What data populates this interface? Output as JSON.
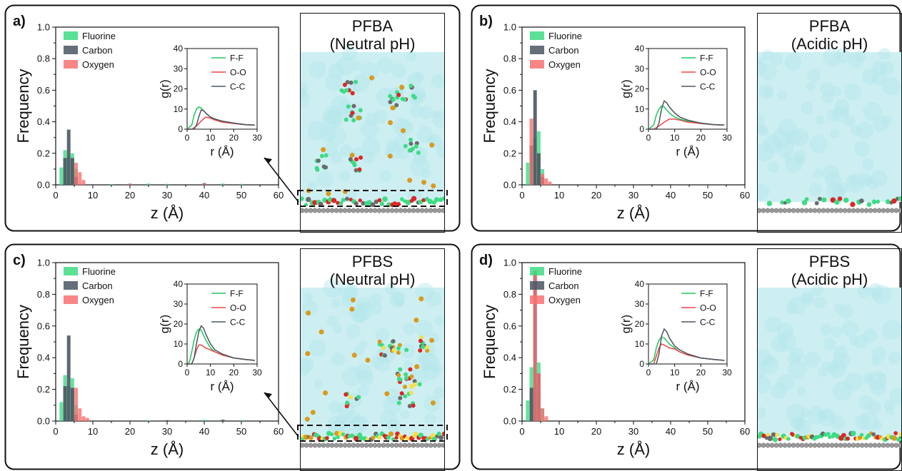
{
  "chart_data": [
    {
      "panel_label": "a)",
      "type": "bar",
      "xlabel": "z (Å)",
      "ylabel": "Frequency",
      "xlim": [
        0,
        60
      ],
      "ylim": [
        0,
        1.0
      ],
      "xticks": [
        "0",
        "10",
        "20",
        "30",
        "40",
        "50",
        "60"
      ],
      "yticks": [
        "0.0",
        "0.2",
        "0.4",
        "0.6",
        "0.8",
        "1.0"
      ],
      "legend_position": "top-left",
      "series": [
        {
          "name": "Fluorine",
          "color": "#3ddc84",
          "x": [
            1.5,
            2.5,
            3.5,
            4.5,
            5.5,
            15,
            20,
            25,
            30,
            40,
            45,
            50
          ],
          "values": [
            0.11,
            0.22,
            0.18,
            0.2,
            0.1,
            0.005,
            0.008,
            0.008,
            0.006,
            0.012,
            0.008,
            0.006
          ]
        },
        {
          "name": "Carbon",
          "color": "#4b5563",
          "x": [
            2.5,
            3.5,
            4.5,
            5.5,
            20,
            40
          ],
          "values": [
            0.17,
            0.35,
            0.17,
            0.05,
            0.006,
            0.01
          ]
        },
        {
          "name": "Oxygen",
          "color": "#f87171",
          "x": [
            5.5,
            6.5,
            7.5,
            20,
            40
          ],
          "values": [
            0.14,
            0.08,
            0.03,
            0.006,
            0.01
          ]
        }
      ],
      "inset": {
        "type": "line",
        "xlabel": "r (Å)",
        "ylabel": "g(r)",
        "xlim": [
          0,
          30
        ],
        "ylim": [
          0,
          40
        ],
        "xticks": [
          "0",
          "10",
          "20",
          "30"
        ],
        "yticks": [
          "0",
          "10",
          "20",
          "30",
          "40"
        ],
        "series": [
          {
            "name": "F-F",
            "color": "#22c55e",
            "x": [
              0,
              2,
              3,
              4,
              5,
              6,
              8,
              10,
              12,
              15,
              20,
              25,
              29
            ],
            "y": [
              0,
              2,
              7,
              10,
              11,
              10.5,
              8,
              6,
              5,
              4,
              3,
              2.3,
              2
            ]
          },
          {
            "name": "O-O",
            "color": "#ef4444",
            "x": [
              0,
              2,
              4,
              6,
              8,
              10,
              12,
              15,
              20,
              25,
              29
            ],
            "y": [
              0,
              0,
              1.5,
              4,
              6,
              5.5,
              4.5,
              3.5,
              2.8,
              2.2,
              2
            ]
          },
          {
            "name": "C-C",
            "color": "#4b5563",
            "x": [
              0,
              3,
              4,
              5,
              6,
              7,
              8,
              10,
              12,
              15,
              20,
              25,
              29
            ],
            "y": [
              0,
              0,
              2,
              6,
              9.5,
              9.2,
              8,
              6,
              5,
              4,
              3,
              2.2,
              2
            ]
          }
        ]
      },
      "snapshot_title": [
        "PFBA",
        "(Neutral pH)"
      ]
    },
    {
      "panel_label": "b)",
      "type": "bar",
      "xlabel": "z (Å)",
      "ylabel": "Frequency",
      "xlim": [
        0,
        60
      ],
      "ylim": [
        0,
        1.0
      ],
      "xticks": [
        "0",
        "10",
        "20",
        "30",
        "40",
        "50",
        "60"
      ],
      "yticks": [
        "0.0",
        "0.2",
        "0.4",
        "0.6",
        "0.8",
        "1.0"
      ],
      "legend_position": "top-left",
      "series": [
        {
          "name": "Fluorine",
          "color": "#3ddc84",
          "x": [
            1.5,
            2.5,
            3.5,
            4.5,
            5.5
          ],
          "values": [
            0.14,
            0.21,
            0.3,
            0.34,
            0.1
          ]
        },
        {
          "name": "Carbon",
          "color": "#4b5563",
          "x": [
            2.5,
            3.5,
            4.5,
            5.5
          ],
          "values": [
            0.25,
            0.6,
            0.2,
            0.05
          ]
        },
        {
          "name": "Oxygen",
          "color": "#f87171",
          "x": [
            2.5,
            5.5,
            6.5,
            7.5
          ],
          "values": [
            0.42,
            0.07,
            0.04,
            0.02
          ]
        }
      ],
      "inset": {
        "type": "line",
        "xlabel": "r (Å)",
        "ylabel": "g(r)",
        "xlim": [
          0,
          30
        ],
        "ylim": [
          0,
          40
        ],
        "xticks": [
          "0",
          "10",
          "20",
          "30"
        ],
        "yticks": [
          "0",
          "10",
          "20",
          "30",
          "40"
        ],
        "series": [
          {
            "name": "F-F",
            "color": "#22c55e",
            "x": [
              0,
              2,
              3,
              4,
              5,
              6,
              8,
              10,
              12,
              15,
              20,
              25,
              29
            ],
            "y": [
              0,
              2,
              7,
              10,
              11.5,
              11,
              8,
              6,
              5,
              4,
              3,
              2.3,
              2
            ]
          },
          {
            "name": "O-O",
            "color": "#ef4444",
            "x": [
              0,
              2,
              4,
              6,
              8,
              10,
              12,
              15,
              20,
              25,
              29
            ],
            "y": [
              0,
              0,
              1.5,
              3.5,
              5,
              5,
              4.5,
              3.5,
              2.8,
              2.2,
              2
            ]
          },
          {
            "name": "C-C",
            "color": "#4b5563",
            "x": [
              0,
              3,
              4,
              5,
              6,
              7,
              8,
              10,
              12,
              15,
              20,
              25,
              29
            ],
            "y": [
              0,
              0,
              3,
              10,
              14,
              13,
              11,
              8,
              6,
              4.5,
              3,
              2.2,
              2
            ]
          }
        ]
      },
      "snapshot_title": [
        "PFBA",
        "(Acidic pH)"
      ]
    },
    {
      "panel_label": "c)",
      "type": "bar",
      "xlabel": "z (Å)",
      "ylabel": "Frequency",
      "xlim": [
        0,
        60
      ],
      "ylim": [
        0,
        1.0
      ],
      "xticks": [
        "0",
        "10",
        "20",
        "30",
        "40",
        "50",
        "60"
      ],
      "yticks": [
        "0.0",
        "0.2",
        "0.4",
        "0.6",
        "0.8",
        "1.0"
      ],
      "legend_position": "top-left",
      "series": [
        {
          "name": "Fluorine",
          "color": "#3ddc84",
          "x": [
            1.5,
            2.5,
            3.5,
            4.5,
            5.5,
            25,
            30,
            40,
            45,
            50
          ],
          "values": [
            0.12,
            0.29,
            0.22,
            0.27,
            0.1,
            0.005,
            0.006,
            0.008,
            0.008,
            0.006
          ]
        },
        {
          "name": "Carbon",
          "color": "#4b5563",
          "x": [
            2.5,
            3.5,
            4.5,
            5.5,
            30,
            45
          ],
          "values": [
            0.22,
            0.54,
            0.21,
            0.04,
            0.005,
            0.008
          ]
        },
        {
          "name": "Oxygen",
          "color": "#f87171",
          "x": [
            5.5,
            6.5,
            7.5,
            8.5
          ],
          "values": [
            0.21,
            0.08,
            0.03,
            0.02
          ]
        }
      ],
      "inset": {
        "type": "line",
        "xlabel": "r (Å)",
        "ylabel": "g(r)",
        "xlim": [
          0,
          30
        ],
        "ylim": [
          0,
          40
        ],
        "xticks": [
          "0",
          "10",
          "20",
          "30"
        ],
        "yticks": [
          "0",
          "10",
          "20",
          "30",
          "40"
        ],
        "series": [
          {
            "name": "F-F",
            "color": "#22c55e",
            "x": [
              0,
              1,
              2,
              3,
              4,
              5,
              6,
              8,
              10,
              12,
              15,
              20,
              25,
              29
            ],
            "y": [
              0,
              1,
              6,
              12,
              16,
              17.5,
              17,
              12,
              8,
              6,
              4.5,
              3,
              2.2,
              1.8
            ]
          },
          {
            "name": "O-O",
            "color": "#ef4444",
            "x": [
              0,
              2,
              3,
              4,
              5,
              6,
              8,
              10,
              12,
              15,
              20,
              25,
              29
            ],
            "y": [
              0,
              0,
              3,
              7,
              9.5,
              9.5,
              8,
              7,
              6,
              4.5,
              3,
              2.3,
              1.8
            ]
          },
          {
            "name": "C-C",
            "color": "#4b5563",
            "x": [
              0,
              2,
              3,
              4,
              5,
              6,
              7,
              8,
              10,
              12,
              15,
              20,
              25,
              29
            ],
            "y": [
              0,
              0,
              3,
              10,
              16,
              19,
              18,
              15,
              10,
              7,
              5,
              3,
              2.2,
              1.8
            ]
          }
        ]
      },
      "snapshot_title": [
        "PFBS",
        "(Neutral pH)"
      ]
    },
    {
      "panel_label": "d)",
      "type": "bar",
      "xlabel": "z (Å)",
      "ylabel": "Frequency",
      "xlim": [
        0,
        60
      ],
      "ylim": [
        0,
        1.0
      ],
      "xticks": [
        "0",
        "10",
        "20",
        "30",
        "40",
        "50",
        "60"
      ],
      "yticks": [
        "0.0",
        "0.2",
        "0.4",
        "0.6",
        "0.8",
        "1.0"
      ],
      "legend_position": "top-left",
      "series": [
        {
          "name": "Fluorine",
          "color": "#3ddc84",
          "x": [
            1.5,
            2.5,
            3.5,
            4.5,
            5.5
          ],
          "values": [
            0.13,
            0.34,
            0.22,
            0.37,
            0.08
          ]
        },
        {
          "name": "Carbon",
          "color": "#4b5563",
          "x": [
            2.5,
            3.5,
            4.5
          ],
          "values": [
            0.21,
            0.95,
            0.3
          ]
        },
        {
          "name": "Oxygen",
          "color": "#f87171",
          "x": [
            3.5,
            4.5,
            5.5,
            6.5
          ],
          "values": [
            0.95,
            0.3,
            0.08,
            0.03
          ]
        }
      ],
      "inset": {
        "type": "line",
        "xlabel": "r (Å)",
        "ylabel": "g(r)",
        "xlim": [
          0,
          30
        ],
        "ylim": [
          0,
          40
        ],
        "xticks": [
          "0",
          "10",
          "20",
          "30"
        ],
        "yticks": [
          "0",
          "10",
          "20",
          "30",
          "40"
        ],
        "series": [
          {
            "name": "F-F",
            "color": "#22c55e",
            "x": [
              0,
              2,
              3,
              4,
              5,
              6,
              8,
              10,
              12,
              15,
              20,
              25,
              29
            ],
            "y": [
              0,
              2,
              8,
              12,
              13.5,
              13,
              10,
              8,
              6,
              4.5,
              3,
              2.2,
              1.8
            ]
          },
          {
            "name": "O-O",
            "color": "#ef4444",
            "x": [
              0,
              2,
              3,
              4,
              5,
              6,
              8,
              10,
              12,
              15,
              20,
              25,
              29
            ],
            "y": [
              0,
              0,
              4,
              8,
              10,
              9.5,
              8,
              7.5,
              6,
              4.5,
              3,
              2.3,
              1.8
            ]
          },
          {
            "name": "C-C",
            "color": "#4b5563",
            "x": [
              0,
              3,
              4,
              5,
              6,
              7,
              8,
              10,
              12,
              15,
              20,
              25,
              29
            ],
            "y": [
              0,
              0,
              5,
              14,
              17.5,
              16,
              13,
              9,
              7,
              5,
              3,
              2.2,
              1.8
            ]
          }
        ]
      },
      "snapshot_title": [
        "PFBS",
        "(Acidic pH)"
      ]
    }
  ],
  "colors": {
    "water": "#cdeff2",
    "surface_atom": "#9a9a9a",
    "fluorine_atom": "#3ddc84",
    "carbon_atom": "#6b6b6b",
    "oxygen_atom": "#dc2626",
    "sulfur_atom": "#f4e04d",
    "ion": "#d99a1e"
  }
}
